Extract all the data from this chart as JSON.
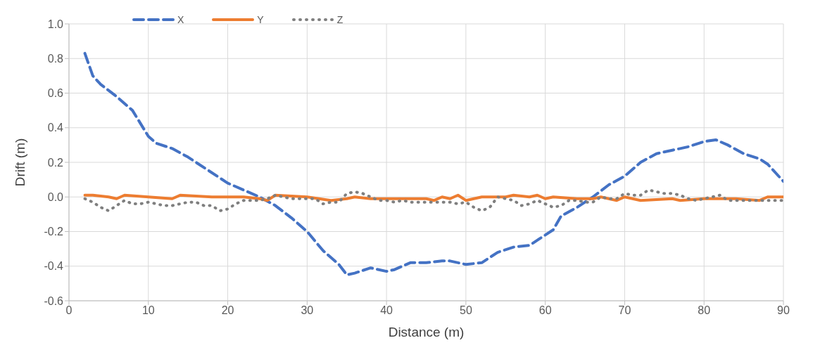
{
  "chart_data": {
    "type": "line",
    "xlabel": "Distance (m)",
    "ylabel": "Drift (m)",
    "xlim": [
      0,
      90
    ],
    "xticks": [
      0,
      10,
      20,
      30,
      40,
      50,
      60,
      70,
      80,
      90
    ],
    "ylim": [
      -0.6,
      1.0
    ],
    "yticks": [
      {
        "value": -0.6,
        "label": "-0.6"
      },
      {
        "value": -0.4,
        "label": "-0.4"
      },
      {
        "value": -0.2,
        "label": "-0.2"
      },
      {
        "value": 0,
        "label": "0.0"
      },
      {
        "value": 0.2,
        "label": "0.2"
      },
      {
        "value": 0.4,
        "label": "0.4"
      },
      {
        "value": 0.6,
        "label": "0.6"
      },
      {
        "value": 0.8,
        "label": "0.8"
      },
      {
        "value": 1.0,
        "label": "1.0"
      }
    ],
    "grid": true,
    "legend": "top left",
    "marker": "none",
    "series": [
      {
        "name": "X",
        "color": "#4472c4",
        "line_style": "dashed",
        "x": [
          2,
          3,
          4,
          6,
          8,
          10,
          11,
          13,
          15,
          17,
          20,
          22,
          24,
          26,
          28,
          30,
          32,
          34,
          35,
          36,
          38,
          40,
          41,
          43,
          45,
          47,
          48,
          50,
          52,
          54,
          56,
          58,
          60,
          61,
          62,
          64,
          66,
          68,
          70,
          72,
          74,
          76,
          78,
          80,
          81.5,
          83,
          85,
          87,
          88,
          90
        ],
        "values": [
          0.83,
          0.7,
          0.65,
          0.58,
          0.5,
          0.35,
          0.31,
          0.28,
          0.23,
          0.17,
          0.08,
          0.04,
          0.0,
          -0.05,
          -0.12,
          -0.2,
          -0.31,
          -0.39,
          -0.45,
          -0.44,
          -0.41,
          -0.43,
          -0.42,
          -0.38,
          -0.38,
          -0.37,
          -0.37,
          -0.39,
          -0.38,
          -0.32,
          -0.29,
          -0.28,
          -0.22,
          -0.19,
          -0.11,
          -0.06,
          0.0,
          0.07,
          0.12,
          0.2,
          0.25,
          0.27,
          0.29,
          0.32,
          0.33,
          0.3,
          0.25,
          0.22,
          0.19,
          0.09
        ]
      },
      {
        "name": "Y",
        "color": "#ed7d31",
        "line_style": "solid",
        "x": [
          2,
          3,
          5,
          6,
          7,
          10,
          13,
          14,
          18,
          22,
          24,
          25,
          26,
          30,
          33,
          35,
          36,
          38,
          40,
          45,
          46,
          47,
          48,
          49,
          50,
          52,
          55,
          56,
          58,
          59,
          60,
          61,
          64,
          66,
          67,
          69,
          70,
          72,
          76,
          77,
          80,
          84,
          87,
          88,
          90
        ],
        "values": [
          0.01,
          0.01,
          0.0,
          -0.01,
          0.01,
          0.0,
          -0.01,
          0.01,
          0.0,
          0.0,
          -0.01,
          -0.02,
          0.01,
          0.0,
          -0.02,
          -0.01,
          0.0,
          -0.01,
          -0.01,
          -0.01,
          -0.02,
          0.0,
          -0.01,
          0.01,
          -0.02,
          0.0,
          0.0,
          0.01,
          0.0,
          0.01,
          -0.01,
          0.0,
          -0.01,
          -0.01,
          0.0,
          -0.02,
          0.0,
          -0.02,
          -0.01,
          -0.02,
          -0.01,
          -0.01,
          -0.02,
          0.0,
          0.0
        ]
      },
      {
        "name": "Z",
        "color": "#7f7f7f",
        "line_style": "dotted",
        "x": [
          2,
          3,
          4,
          5,
          6,
          7,
          8,
          9,
          10,
          11,
          12,
          13,
          14,
          15,
          16,
          17,
          18,
          19,
          20,
          21,
          22,
          23,
          24,
          25,
          26,
          27,
          28,
          29,
          30,
          31,
          32,
          33,
          34,
          35,
          36,
          37,
          38,
          39,
          40,
          41,
          42,
          43,
          44,
          45,
          46,
          47,
          48,
          49,
          50,
          51,
          52,
          53,
          54,
          55,
          56,
          57,
          58,
          59,
          60,
          61,
          62,
          63,
          64,
          65,
          66,
          67,
          68,
          69,
          70,
          71,
          72,
          73,
          74,
          75,
          76,
          77,
          78,
          79,
          80,
          81,
          82,
          83,
          84,
          85,
          86,
          87,
          88,
          89,
          90
        ],
        "values": [
          -0.01,
          -0.03,
          -0.06,
          -0.08,
          -0.05,
          -0.02,
          -0.04,
          -0.04,
          -0.03,
          -0.04,
          -0.05,
          -0.05,
          -0.04,
          -0.03,
          -0.03,
          -0.05,
          -0.05,
          -0.08,
          -0.07,
          -0.04,
          -0.02,
          -0.02,
          -0.02,
          -0.01,
          0.01,
          0.0,
          -0.01,
          -0.01,
          -0.01,
          -0.01,
          -0.04,
          -0.03,
          -0.03,
          0.02,
          0.03,
          0.02,
          0.0,
          -0.02,
          -0.02,
          -0.03,
          -0.02,
          -0.03,
          -0.03,
          -0.03,
          -0.03,
          -0.03,
          -0.03,
          -0.04,
          -0.03,
          -0.06,
          -0.08,
          -0.06,
          0.0,
          -0.01,
          -0.02,
          -0.05,
          -0.04,
          -0.02,
          -0.04,
          -0.06,
          -0.05,
          -0.02,
          -0.02,
          -0.03,
          -0.03,
          0.0,
          -0.01,
          -0.01,
          0.02,
          0.01,
          0.01,
          0.04,
          0.03,
          0.02,
          0.02,
          0.01,
          -0.01,
          -0.02,
          -0.01,
          0.0,
          0.01,
          -0.02,
          -0.02,
          -0.02,
          -0.02,
          -0.02,
          -0.02,
          -0.02,
          -0.02
        ]
      }
    ]
  }
}
